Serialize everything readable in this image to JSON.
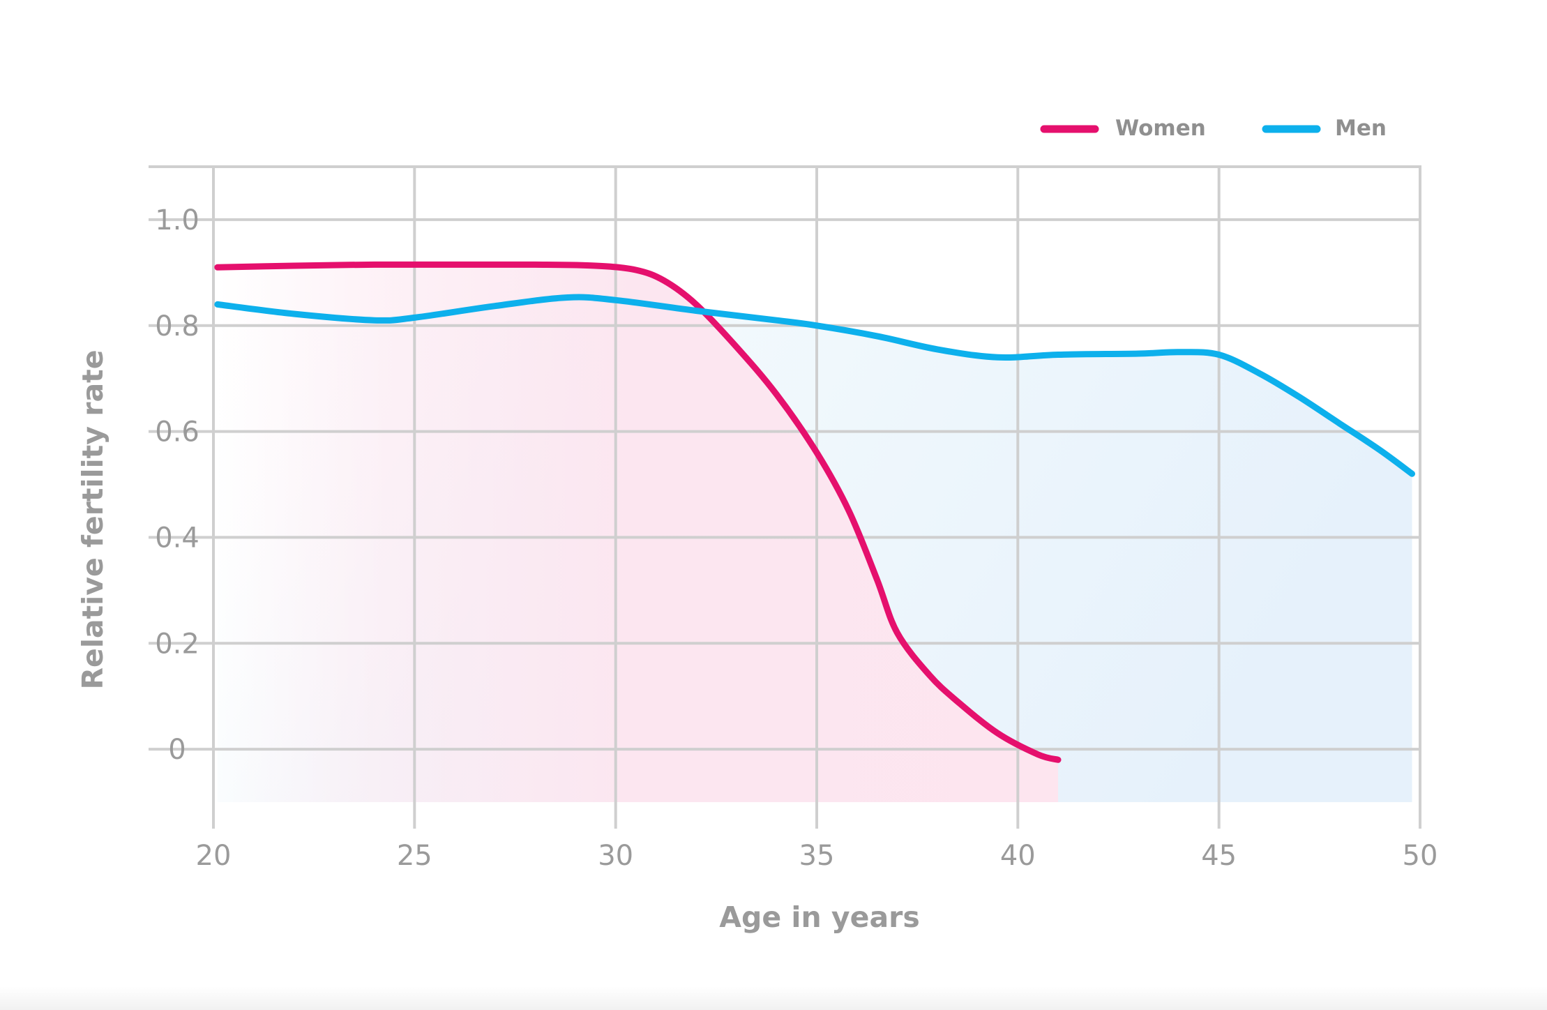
{
  "chart_data": {
    "type": "line",
    "xlabel": "Age in years",
    "ylabel": "Relative fertility rate",
    "xlim": [
      20,
      50
    ],
    "ylim": [
      -0.1,
      1.1
    ],
    "x_ticks": [
      "20",
      "25",
      "30",
      "35",
      "40",
      "45",
      "50"
    ],
    "x_tick_values": [
      20,
      25,
      30,
      35,
      40,
      45,
      50
    ],
    "y_ticks": [
      "1.0",
      "0.8",
      "0.6",
      "0.4",
      "0.2",
      "0"
    ],
    "y_tick_values": [
      1.0,
      0.8,
      0.6,
      0.4,
      0.2,
      0
    ],
    "grid": true,
    "legend_position": "top-right",
    "series": [
      {
        "name": "Women",
        "color": "#e5106d",
        "fill": "pink-gradient",
        "x": [
          20.1,
          22,
          24,
          26,
          28,
          29.5,
          30.5,
          31.2,
          32,
          33,
          34,
          35,
          35.8,
          36.5,
          37,
          37.8,
          38.5,
          39.5,
          40.5,
          41
        ],
        "y": [
          0.91,
          0.913,
          0.915,
          0.915,
          0.915,
          0.913,
          0.905,
          0.885,
          0.84,
          0.76,
          0.67,
          0.56,
          0.45,
          0.32,
          0.22,
          0.14,
          0.09,
          0.03,
          -0.01,
          -0.02
        ]
      },
      {
        "name": "Men",
        "color": "#0db0ec",
        "fill": "blue-gradient",
        "x": [
          20.1,
          22,
          24,
          25,
          27,
          28.8,
          30,
          32,
          34,
          35,
          36.5,
          38,
          39.5,
          41,
          43,
          44,
          45,
          46,
          47,
          48,
          49,
          49.8
        ],
        "y": [
          0.84,
          0.822,
          0.81,
          0.815,
          0.837,
          0.853,
          0.848,
          0.828,
          0.81,
          0.8,
          0.78,
          0.755,
          0.74,
          0.745,
          0.747,
          0.75,
          0.745,
          0.71,
          0.665,
          0.615,
          0.565,
          0.52
        ]
      }
    ]
  }
}
